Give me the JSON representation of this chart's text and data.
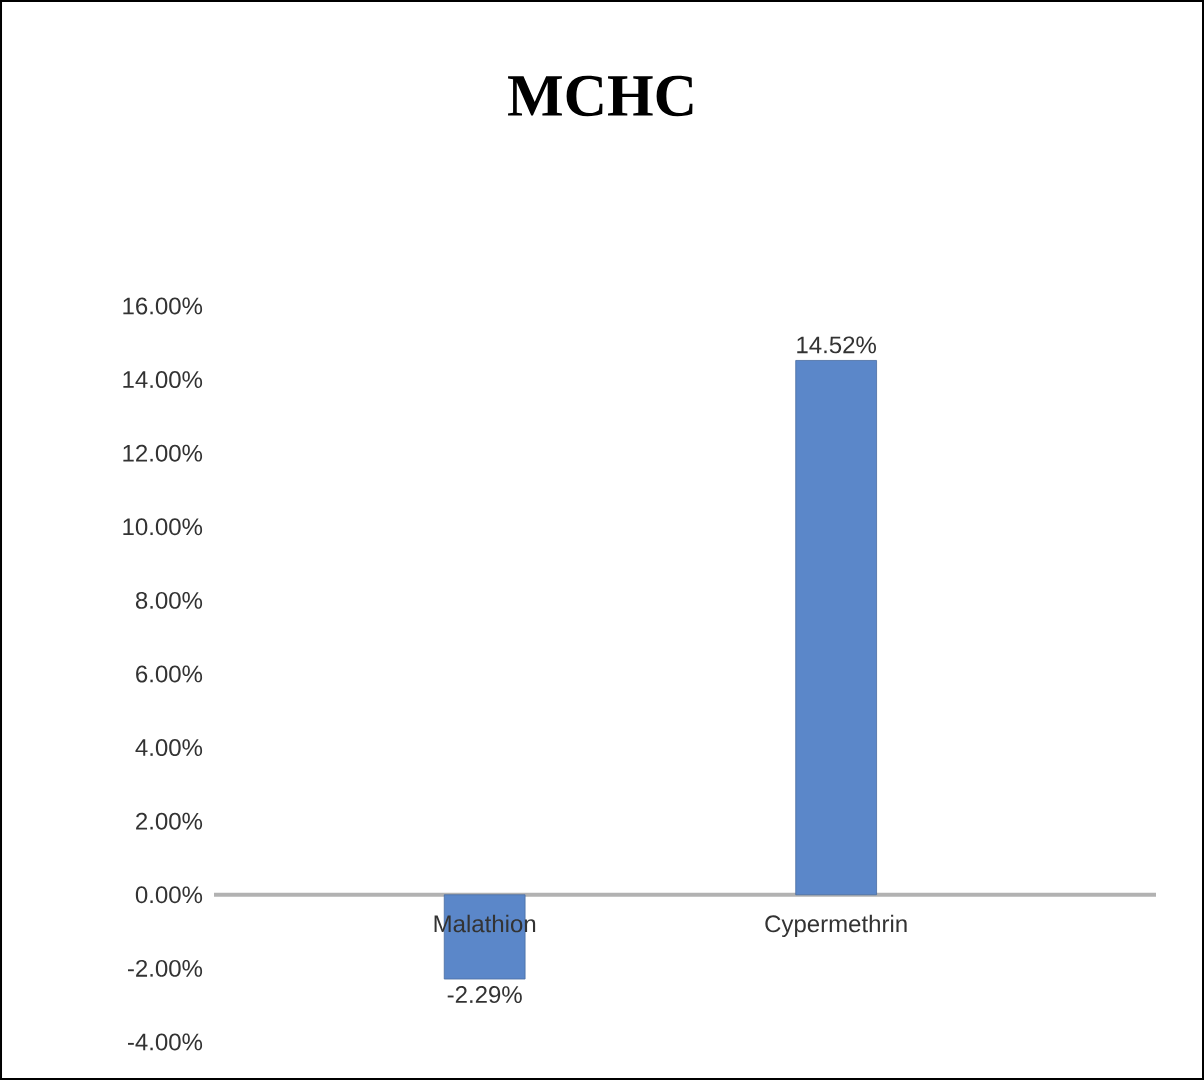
{
  "chart_data": {
    "type": "bar",
    "title": "MCHC",
    "categories": [
      "Malathion",
      "Cypermethrin"
    ],
    "values": [
      -2.29,
      14.52
    ],
    "value_labels": [
      "-2.29%",
      "14.52%"
    ],
    "color": "#5b87c9",
    "ylim": [
      -4,
      16
    ],
    "yticks": [
      {
        "value": -4,
        "label": "-4.00%"
      },
      {
        "value": -2,
        "label": "-2.00%"
      },
      {
        "value": 0,
        "label": "0.00%"
      },
      {
        "value": 2,
        "label": "2.00%"
      },
      {
        "value": 4,
        "label": "4.00%"
      },
      {
        "value": 6,
        "label": "6.00%"
      },
      {
        "value": 8,
        "label": "8.00%"
      },
      {
        "value": 10,
        "label": "10.00%"
      },
      {
        "value": 12,
        "label": "12.00%"
      },
      {
        "value": 14,
        "label": "14.00%"
      },
      {
        "value": 16,
        "label": "16.00%"
      }
    ],
    "grid": false
  }
}
